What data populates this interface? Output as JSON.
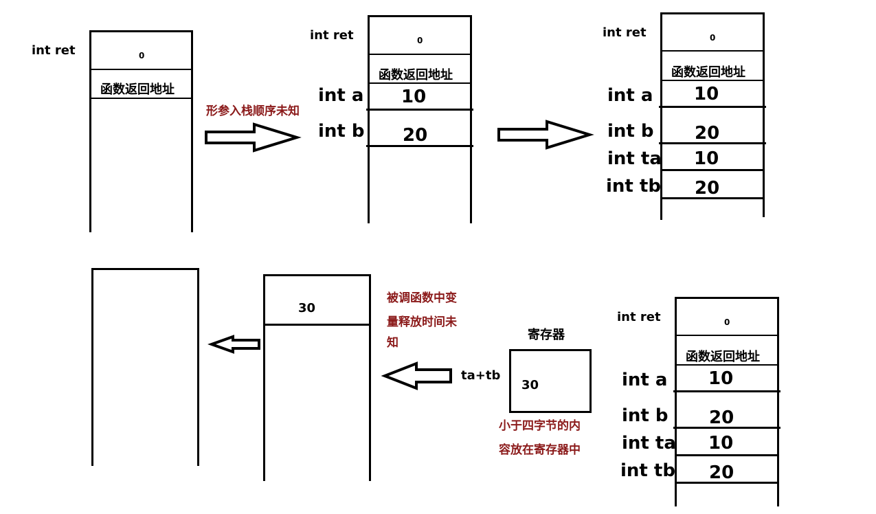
{
  "stack1": {
    "ret_label": "int ret",
    "ret_value": "0",
    "return_addr": "函数返回地址"
  },
  "arrow1_note": "形参入栈顺序未知",
  "stack2": {
    "ret_label": "int ret",
    "ret_value": "0",
    "return_addr": "函数返回地址",
    "a_label": "int a",
    "a_value": "10",
    "b_label": "int b",
    "b_value": "20"
  },
  "stack3": {
    "ret_label": "int ret",
    "ret_value": "0",
    "return_addr": "函数返回地址",
    "a_label": "int a",
    "a_value": "10",
    "b_label": "int b",
    "b_value": "20",
    "ta_label": "int ta",
    "ta_value": "10",
    "tb_label": "int tb",
    "tb_value": "20"
  },
  "stack4": {
    "ret_label": "int ret",
    "ret_value": "0",
    "return_addr": "函数返回地址",
    "a_label": "int a",
    "a_value": "10",
    "b_label": "int b",
    "b_value": "20",
    "ta_label": "int ta",
    "ta_value": "10",
    "tb_label": "int tb",
    "tb_value": "20"
  },
  "register": {
    "title": "寄存器",
    "value": "30",
    "source_expr": "ta+tb",
    "note_line1": "小于四字节的内",
    "note_line2": "容放在寄存器中"
  },
  "stack5": {
    "value": "30",
    "note_line1": "被调函数中变",
    "note_line2": "量释放时间未",
    "note_line3": "知"
  }
}
